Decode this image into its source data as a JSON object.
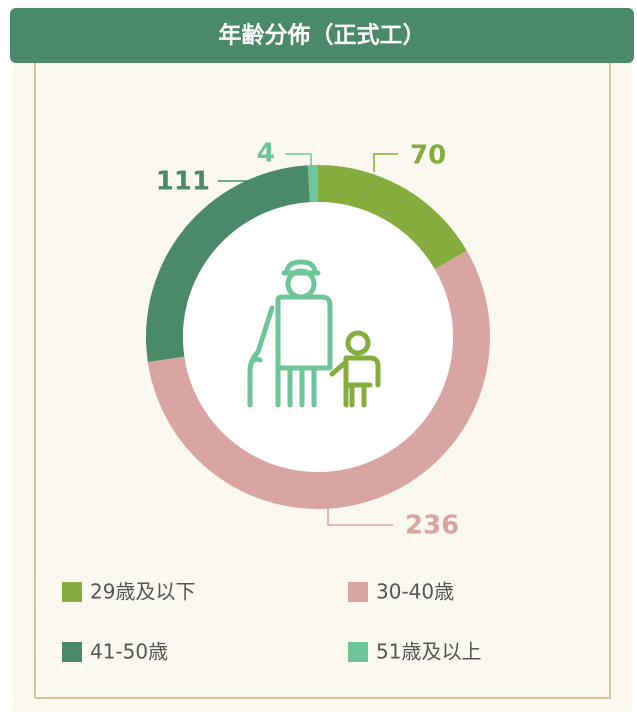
{
  "chart_data": {
    "type": "donut",
    "title": "年齢分佈（正式工）",
    "categories": [
      "29歳及以下",
      "30-40歳",
      "41-50歳",
      "51歳及以上"
    ],
    "values": [
      70,
      236,
      111,
      4
    ],
    "colors": [
      "#84ad3d",
      "#d9a5a2",
      "#4a8a68",
      "#6ec59a"
    ]
  }
}
